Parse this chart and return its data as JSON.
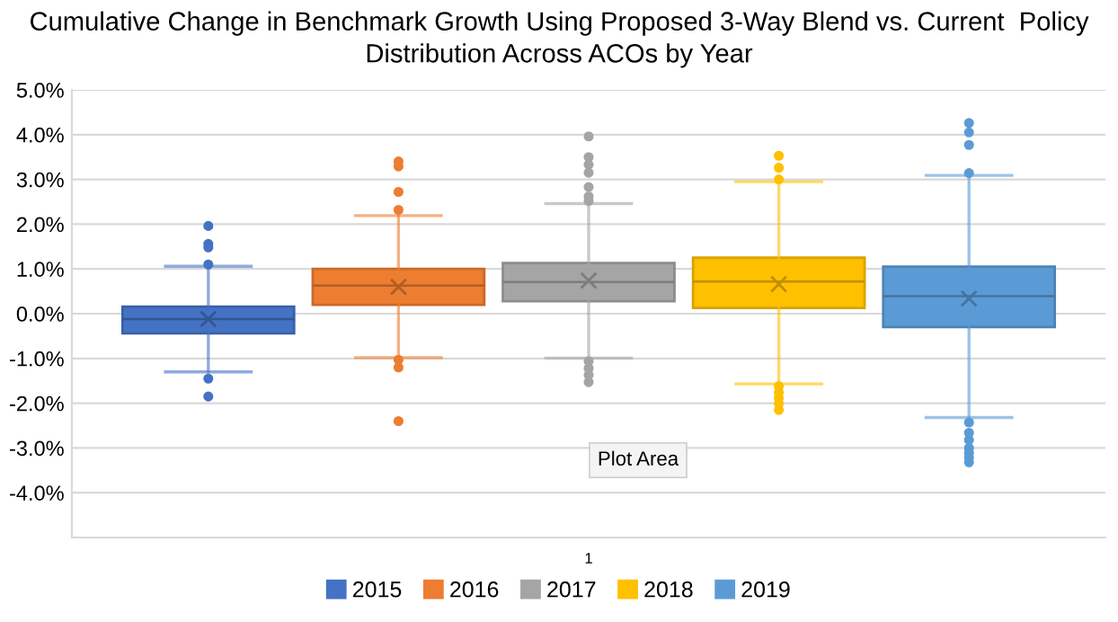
{
  "chart_data": {
    "type": "box",
    "title": "Cumulative Change in Benchmark Growth Using Proposed 3-Way Blend vs. Current  Policy\nDistribution Across ACOs by Year",
    "categories": [
      "1"
    ],
    "ylim": [
      -5,
      5
    ],
    "yticks": [
      {
        "value": -5,
        "label": null
      },
      {
        "value": -4,
        "label": "-4.0%"
      },
      {
        "value": -3,
        "label": "-3.0%"
      },
      {
        "value": -2,
        "label": "-2.0%"
      },
      {
        "value": -1,
        "label": "-1.0%"
      },
      {
        "value": 0,
        "label": "0.0%"
      },
      {
        "value": 1,
        "label": "1.0%"
      },
      {
        "value": 2,
        "label": "2.0%"
      },
      {
        "value": 3,
        "label": "3.0%"
      },
      {
        "value": 4,
        "label": "4.0%"
      },
      {
        "value": 5,
        "label": "5.0%"
      }
    ],
    "grid": "y",
    "legend": "bottom",
    "marker": "circle",
    "annotations": [
      "Plot Area"
    ],
    "series": [
      {
        "name": "2015",
        "color": "#4472c4",
        "boxes": [
          {
            "low": -1.3,
            "q1": -0.44,
            "median": -0.12,
            "q3": 0.16,
            "high": 1.06,
            "mean": -0.12,
            "outliers": [
              1.96,
              1.56,
              1.48,
              1.1,
              -1.45,
              -1.85
            ]
          }
        ]
      },
      {
        "name": "2016",
        "color": "#ed7d31",
        "boxes": [
          {
            "low": -0.98,
            "q1": 0.2,
            "median": 0.63,
            "q3": 1.0,
            "high": 2.19,
            "mean": 0.6,
            "outliers": [
              3.4,
              3.29,
              2.72,
              2.32,
              -1.03,
              -1.2,
              -2.4
            ]
          }
        ]
      },
      {
        "name": "2017",
        "color": "#a5a5a5",
        "boxes": [
          {
            "low": -0.99,
            "q1": 0.28,
            "median": 0.71,
            "q3": 1.13,
            "high": 2.46,
            "mean": 0.74,
            "outliers": [
              3.96,
              3.5,
              3.33,
              3.15,
              2.83,
              2.62,
              2.52,
              -1.06,
              -1.22,
              -1.37,
              -1.53
            ]
          }
        ]
      },
      {
        "name": "2018",
        "color": "#ffc000",
        "boxes": [
          {
            "low": -1.57,
            "q1": 0.13,
            "median": 0.72,
            "q3": 1.25,
            "high": 2.95,
            "mean": 0.66,
            "outliers": [
              3.53,
              3.26,
              3.0,
              -1.62,
              -1.76,
              -1.89,
              -2.01,
              -2.15
            ]
          }
        ]
      },
      {
        "name": "2019",
        "color": "#5b9bd5",
        "boxes": [
          {
            "low": -2.32,
            "q1": -0.3,
            "median": 0.39,
            "q3": 1.05,
            "high": 3.09,
            "mean": 0.34,
            "outliers": [
              4.26,
              4.05,
              3.77,
              3.14,
              -2.43,
              -2.66,
              -2.82,
              -3.0,
              -3.11,
              -3.22,
              -3.32
            ]
          }
        ]
      }
    ]
  }
}
